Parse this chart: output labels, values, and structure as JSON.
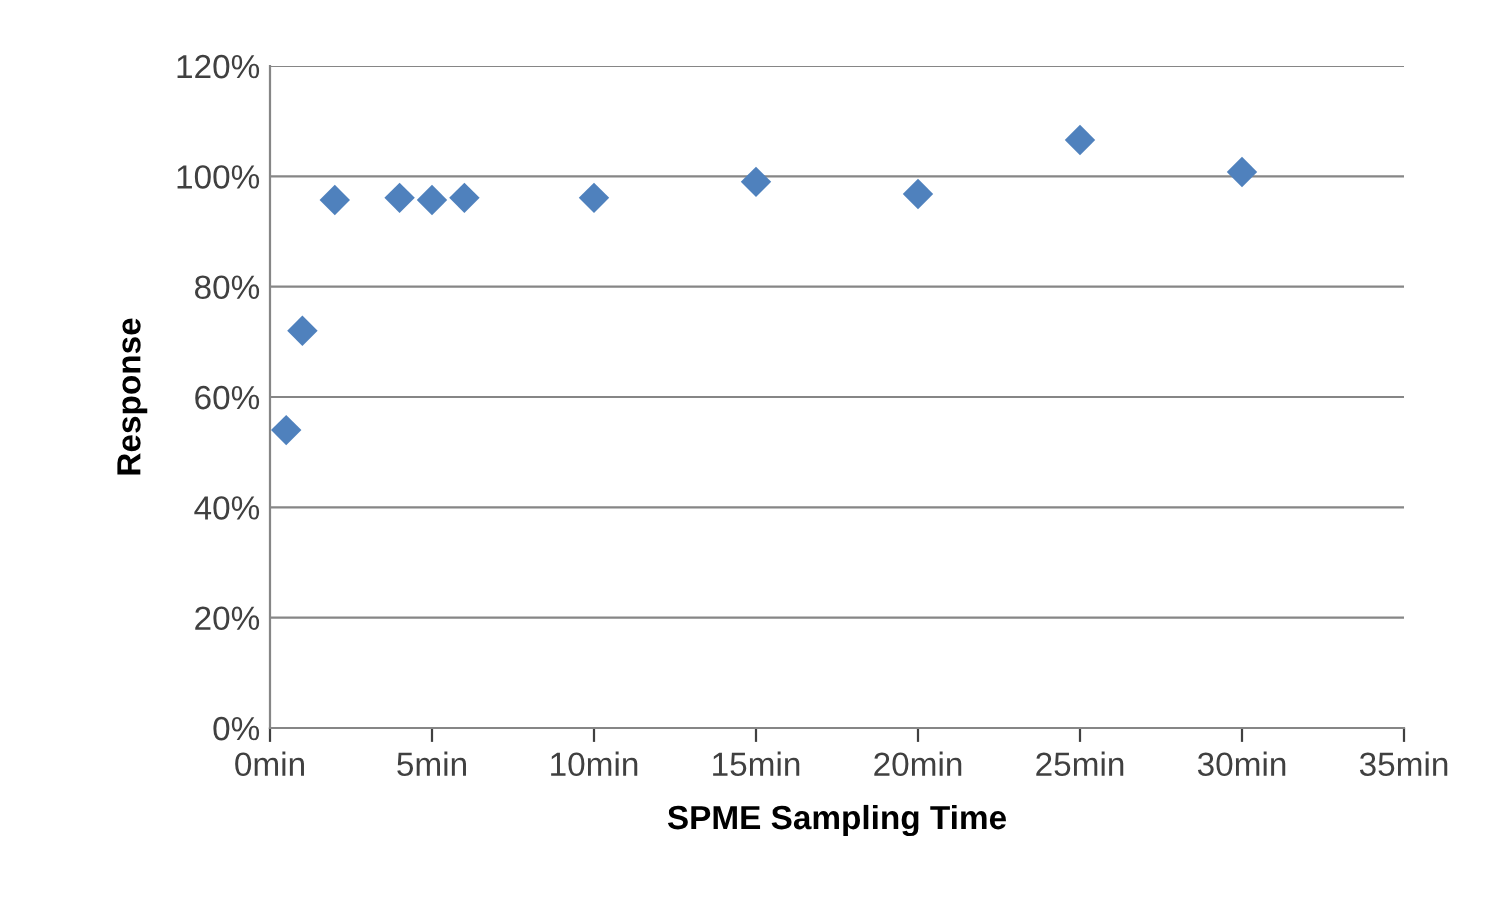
{
  "chart_data": {
    "type": "scatter",
    "xlabel": "SPME Sampling Time",
    "ylabel": "Response",
    "x": [
      0.5,
      1,
      2,
      4,
      5,
      6,
      10,
      15,
      20,
      25,
      30
    ],
    "values": [
      54,
      72,
      95.7,
      96.1,
      95.7,
      96.1,
      96.1,
      99,
      96.8,
      106.6,
      100.8
    ],
    "color": "#4f81bd",
    "marker": "diamond",
    "grid": "y",
    "xlim": [
      0,
      35
    ],
    "xticks": [
      {
        "value": 0,
        "label": "0min"
      },
      {
        "value": 5,
        "label": "5min"
      },
      {
        "value": 10,
        "label": "10min"
      },
      {
        "value": 15,
        "label": "15min"
      },
      {
        "value": 20,
        "label": "20min"
      },
      {
        "value": 25,
        "label": "25min"
      },
      {
        "value": 30,
        "label": "30min"
      },
      {
        "value": 35,
        "label": "35min"
      }
    ],
    "ylim": [
      0,
      120
    ],
    "yticks": [
      {
        "value": 0,
        "label": "0%"
      },
      {
        "value": 20,
        "label": "20%"
      },
      {
        "value": 40,
        "label": "40%"
      },
      {
        "value": 60,
        "label": "60%"
      },
      {
        "value": 80,
        "label": "80%"
      },
      {
        "value": 100,
        "label": "100%"
      },
      {
        "value": 120,
        "label": "120%"
      }
    ]
  }
}
